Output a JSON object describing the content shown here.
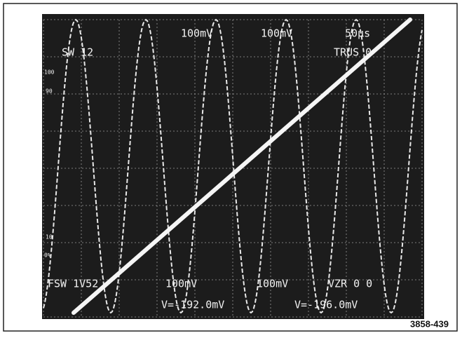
{
  "screen": {
    "top_left": "SW 12",
    "top_labels": [
      "100mV",
      "100mV",
      "50μs"
    ],
    "top_right": "TRUS 0",
    "scale_labels": [
      "100",
      "90",
      "10",
      "0%"
    ],
    "bottom_row": [
      "FSW 1V52",
      "100mV",
      "100mV",
      "VZR 0 0"
    ],
    "readouts": [
      "V=-192.0mV",
      "V=-196.0mV"
    ]
  },
  "caption": "3858-439"
}
